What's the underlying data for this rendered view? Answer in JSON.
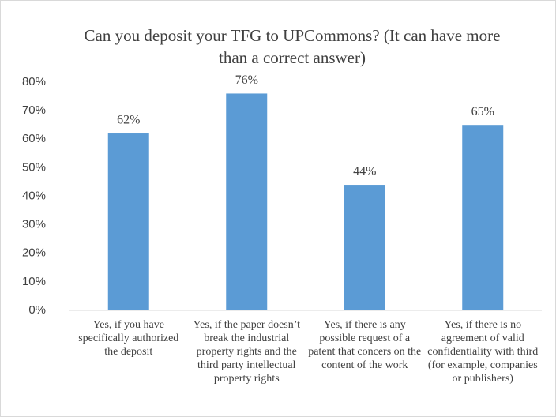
{
  "chart_data": {
    "type": "bar",
    "title": "Can you deposit your TFG to UPCommons? (It can have more than a correct answer)",
    "categories": [
      "Yes, if you have specifically authorized the deposit",
      "Yes, if the paper doesn’t break the industrial property rights and the third party intellectual property rights",
      "Yes, if there is any possible request of a patent that concers on the content of the work",
      "Yes, if there is no agreement of valid confidentiality with third (for example, companies or publishers)"
    ],
    "values": [
      62,
      76,
      44,
      65
    ],
    "value_labels": [
      "62%",
      "76%",
      "44%",
      "65%"
    ],
    "color": "#5b9bd5",
    "ylim": [
      0,
      80
    ],
    "yticks": [
      {
        "value": 0,
        "label": "0%"
      },
      {
        "value": 10,
        "label": "10%"
      },
      {
        "value": 20,
        "label": "20%"
      },
      {
        "value": 30,
        "label": "30%"
      },
      {
        "value": 40,
        "label": "40%"
      },
      {
        "value": 50,
        "label": "50%"
      },
      {
        "value": 60,
        "label": "60%"
      },
      {
        "value": 70,
        "label": "70%"
      },
      {
        "value": 80,
        "label": "80%"
      }
    ],
    "grid": false
  }
}
